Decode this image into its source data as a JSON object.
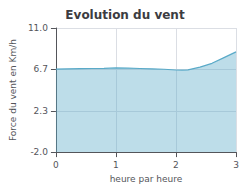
{
  "chart_data": {
    "type": "area",
    "title": "Evolution du vent",
    "xlabel": "heure par heure",
    "ylabel": "Force du vent en Km/h",
    "x": [
      0,
      0.2,
      0.4,
      0.6,
      0.8,
      1.0,
      1.2,
      1.4,
      1.6,
      1.8,
      2.0,
      2.1,
      2.2,
      2.4,
      2.6,
      2.8,
      3.0
    ],
    "values": [
      6.7,
      6.72,
      6.74,
      6.76,
      6.78,
      6.82,
      6.8,
      6.76,
      6.72,
      6.68,
      6.6,
      6.58,
      6.62,
      6.9,
      7.3,
      7.9,
      8.5
    ],
    "color": "#5aaac8",
    "xlim": [
      0,
      3
    ],
    "xticks": [
      0,
      1,
      2,
      3
    ],
    "ylim": [
      -2.0,
      11.0
    ],
    "yticks": [
      {
        "value": -2.0,
        "label": "-2.0"
      },
      2.3,
      6.7,
      {
        "value": 11.0,
        "label": "11.0"
      }
    ],
    "grid": true
  }
}
